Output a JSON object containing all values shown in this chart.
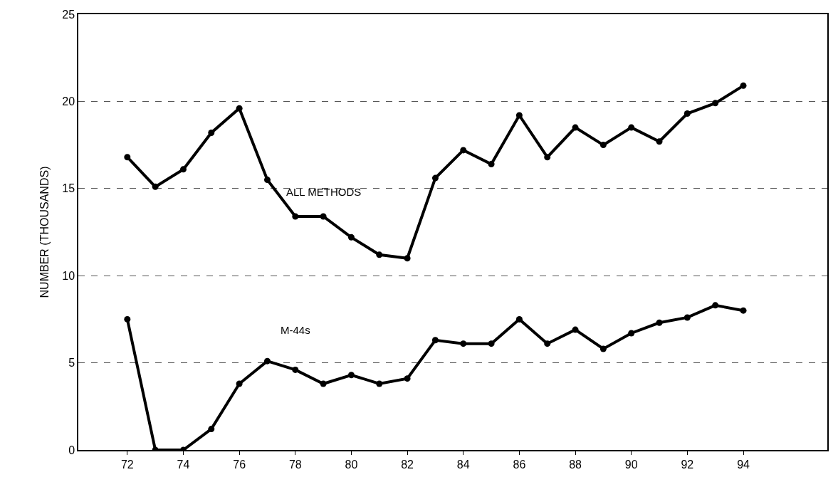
{
  "chart_data": {
    "type": "line",
    "ylabel": "NUMBER (THOUSANDS)",
    "x": [
      72,
      73,
      74,
      75,
      76,
      77,
      78,
      79,
      80,
      81,
      82,
      83,
      84,
      85,
      86,
      87,
      88,
      89,
      90,
      91,
      92,
      93,
      94
    ],
    "series": [
      {
        "name": "ALL METHODS",
        "color": "#000000",
        "values": [
          16.8,
          15.1,
          16.1,
          18.2,
          19.6,
          15.5,
          13.4,
          13.4,
          12.2,
          11.2,
          11.0,
          15.6,
          17.2,
          16.4,
          19.2,
          16.8,
          18.5,
          17.5,
          18.5,
          17.7,
          19.3,
          19.9,
          20.9
        ]
      },
      {
        "name": "M-44s",
        "color": "#000000",
        "values": [
          7.5,
          0,
          0,
          1.2,
          3.8,
          5.1,
          4.6,
          3.8,
          4.3,
          3.8,
          4.1,
          6.3,
          6.1,
          6.1,
          7.5,
          6.1,
          6.9,
          5.8,
          6.7,
          7.3,
          7.6,
          8.3,
          8.0
        ]
      }
    ],
    "xlim": [
      70.25,
      97
    ],
    "xticks": [
      72,
      74,
      76,
      78,
      80,
      82,
      84,
      86,
      88,
      90,
      92,
      94
    ],
    "ylim": [
      0,
      25
    ],
    "yticks": [
      0,
      5,
      10,
      15,
      20,
      25
    ],
    "grid": "y",
    "legend": false,
    "marker": "circle",
    "line_style": "solid"
  }
}
